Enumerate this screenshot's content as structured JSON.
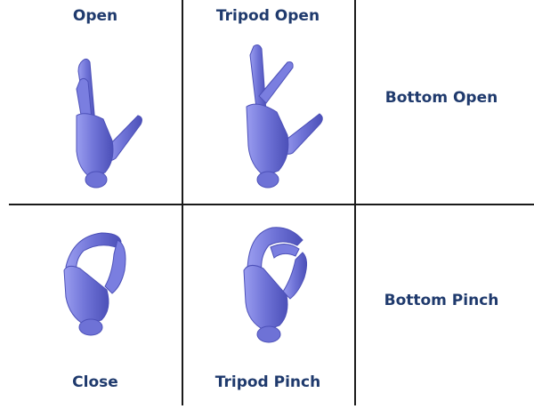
{
  "grasps": {
    "open": "Open",
    "tripod_open": "Tripod Open",
    "bottom_open": "Bottom Open",
    "close": "Close",
    "tripod_pinch": "Tripod Pinch",
    "bottom_pinch": "Bottom Pinch"
  },
  "colors": {
    "hand_fill": "#6e72d6",
    "hand_shade": "#4c50b8",
    "hand_light": "#9a9df0",
    "label": "#1f3a6d",
    "grid_line": "#1a1a1a"
  }
}
